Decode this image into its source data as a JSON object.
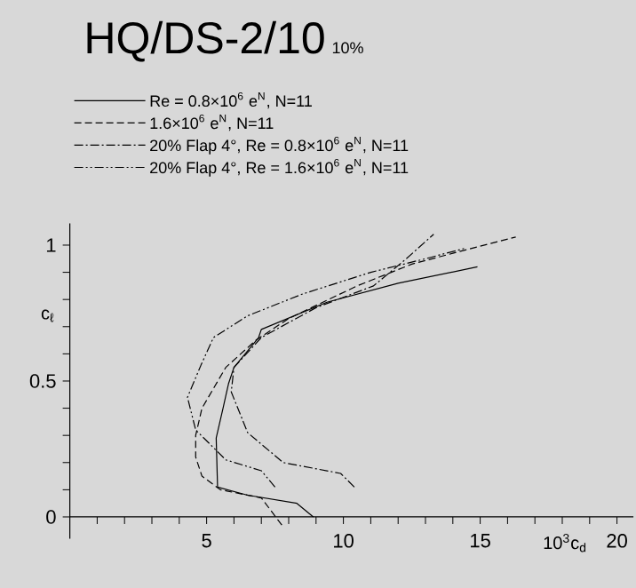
{
  "chart_data": {
    "type": "line",
    "title": "HQ/DS-2/10",
    "subtitle": "10%",
    "xlabel": "10$^{3}$c$_{d}$",
    "ylabel": "c$_{ℓ}$",
    "xlim": [
      0,
      20.6
    ],
    "ylim": [
      -0.08,
      1.08
    ],
    "xticks": [
      {
        "value": 1,
        "label": null
      },
      {
        "value": 2,
        "label": null
      },
      {
        "value": 3,
        "label": null
      },
      {
        "value": 4,
        "label": null
      },
      5,
      {
        "value": 6,
        "label": null
      },
      {
        "value": 7,
        "label": null
      },
      {
        "value": 8,
        "label": null
      },
      {
        "value": 9,
        "label": null
      },
      10,
      {
        "value": 11,
        "label": null
      },
      {
        "value": 12,
        "label": null
      },
      {
        "value": 13,
        "label": null
      },
      {
        "value": 14,
        "label": null
      },
      15,
      {
        "value": 16,
        "label": null
      },
      {
        "value": 17,
        "label": null
      },
      {
        "value": 18,
        "label": null
      },
      {
        "value": 19,
        "label": null
      },
      20
    ],
    "yticks": [
      0,
      {
        "value": 0.1,
        "label": null
      },
      {
        "value": 0.2,
        "label": null
      },
      {
        "value": 0.3,
        "label": null
      },
      {
        "value": 0.4,
        "label": null
      },
      0.5,
      {
        "value": 0.6,
        "label": null
      },
      {
        "value": 0.7,
        "label": null
      },
      {
        "value": 0.8,
        "label": null
      },
      {
        "value": 0.9,
        "label": null
      },
      1
    ],
    "legend": "top left",
    "marker": "none",
    "series": [
      {
        "name": "Re = 0.8×10$^{6}$ e$^{N}$, N=11",
        "color": "#000000",
        "line_style": "solid",
        "x": [
          8.9,
          8.3,
          6.5,
          5.4,
          5.35,
          5.6,
          5.8,
          6.0,
          6.9,
          7.0,
          9.4,
          12.0,
          14.9
        ],
        "values": [
          0.0,
          0.05,
          0.08,
          0.11,
          0.29,
          0.4,
          0.49,
          0.55,
          0.66,
          0.69,
          0.79,
          0.86,
          0.92
        ]
      },
      {
        "name": "1.6×10$^{6}$ e$^{N}$, N=11",
        "color": "#000000",
        "line_style": "dashed",
        "x": [
          7.75,
          7.0,
          5.5,
          4.83,
          4.6,
          4.6,
          4.83,
          5.7,
          6.8,
          8.0,
          10.5,
          12.5,
          14.0,
          16.3
        ],
        "values": [
          -0.03,
          0.07,
          0.1,
          0.15,
          0.22,
          0.3,
          0.4,
          0.55,
          0.65,
          0.73,
          0.85,
          0.93,
          0.97,
          1.03
        ]
      },
      {
        "name": "20% Flap 4°, Re = 0.8×10$^{6}$ e$^{N}$, N=11",
        "color": "#000000",
        "line_style": "dashdot",
        "x": [
          10.4,
          9.9,
          7.8,
          6.5,
          5.9,
          6.0,
          7.0,
          9.0,
          11.1,
          12.3,
          13.3
        ],
        "values": [
          0.11,
          0.16,
          0.2,
          0.31,
          0.46,
          0.55,
          0.66,
          0.77,
          0.85,
          0.95,
          1.04
        ]
      },
      {
        "name": "20% Flap 4°, Re = 1.6×10$^{6}$ e$^{N}$, N=11",
        "color": "#000000",
        "line_style": "dashdotdot",
        "x": [
          7.5,
          7.0,
          5.7,
          4.6,
          4.3,
          4.8,
          5.25,
          6.5,
          8.5,
          11.0,
          13.0,
          14.5
        ],
        "values": [
          0.11,
          0.17,
          0.21,
          0.32,
          0.44,
          0.56,
          0.66,
          0.74,
          0.82,
          0.9,
          0.95,
          0.99
        ]
      }
    ]
  }
}
